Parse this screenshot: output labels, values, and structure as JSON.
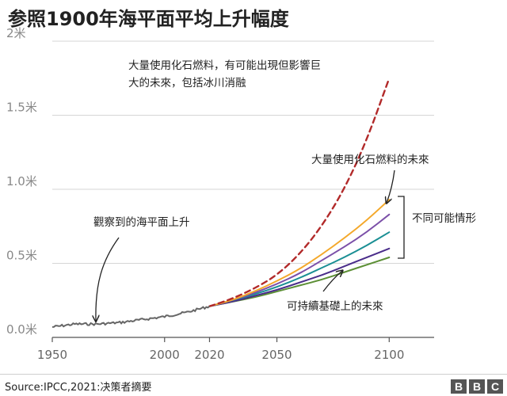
{
  "title": "参照1900年海平面平均上升幅度",
  "source": "Source:IPCC,2021:决策者摘要",
  "logo": [
    "B",
    "B",
    "C"
  ],
  "annotations": {
    "high_emission_long_1": "大量使用化石燃料，有可能出現但影響巨",
    "high_emission_long_2": "大的未來，包括冰川消融",
    "high_emission_short": "大量使用化石燃料的未來",
    "scenarios": "不同可能情形",
    "sustainable": "可持續基礎上的未來",
    "observed": "觀察到的海平面上升"
  },
  "chart_data": {
    "type": "line",
    "title": "参照1900年海平面平均上升幅度",
    "xlim": [
      1950,
      2120
    ],
    "ylim": [
      0,
      2
    ],
    "x_ticks": [
      1950,
      2000,
      2020,
      2050,
      2100
    ],
    "y_ticks": [
      {
        "value": 0,
        "label": "0.0米"
      },
      {
        "value": 0.5,
        "label": "0.5米"
      },
      {
        "value": 1.0,
        "label": "1.0米"
      },
      {
        "value": 1.5,
        "label": "1.5米"
      },
      {
        "value": 2.0,
        "label": "2米"
      }
    ],
    "grid": "horizontal",
    "colors": {
      "observed": "#666666",
      "high_extreme": "#b22a2a",
      "scenario_1": "#f4a82a",
      "scenario_2": "#7b4fa8",
      "scenario_3": "#1a8f94",
      "scenario_4": "#4a2d8a",
      "scenario_5": "#5c8f35"
    },
    "observed": {
      "x": [
        1950,
        1960,
        1970,
        1980,
        1990,
        2000,
        2010,
        2020
      ],
      "values": [
        0.07,
        0.09,
        0.09,
        0.1,
        0.12,
        0.14,
        0.17,
        0.21
      ]
    },
    "projections": [
      {
        "key": "high_extreme",
        "style": "dashed",
        "x": [
          2020,
          2030,
          2040,
          2050,
          2060,
          2070,
          2080,
          2090,
          2100
        ],
        "values": [
          0.21,
          0.26,
          0.33,
          0.42,
          0.56,
          0.75,
          1.0,
          1.33,
          1.75
        ]
      },
      {
        "key": "scenario_1",
        "style": "solid",
        "x": [
          2020,
          2030,
          2040,
          2050,
          2060,
          2070,
          2080,
          2090,
          2100
        ],
        "values": [
          0.21,
          0.25,
          0.31,
          0.38,
          0.46,
          0.56,
          0.67,
          0.79,
          0.93
        ]
      },
      {
        "key": "scenario_2",
        "style": "solid",
        "x": [
          2020,
          2030,
          2040,
          2050,
          2060,
          2070,
          2080,
          2090,
          2100
        ],
        "values": [
          0.21,
          0.25,
          0.3,
          0.36,
          0.43,
          0.52,
          0.61,
          0.71,
          0.83
        ]
      },
      {
        "key": "scenario_3",
        "style": "solid",
        "x": [
          2020,
          2030,
          2040,
          2050,
          2060,
          2070,
          2080,
          2090,
          2100
        ],
        "values": [
          0.21,
          0.25,
          0.29,
          0.34,
          0.4,
          0.47,
          0.54,
          0.62,
          0.71
        ]
      },
      {
        "key": "scenario_4",
        "style": "solid",
        "x": [
          2020,
          2030,
          2040,
          2050,
          2060,
          2070,
          2080,
          2090,
          2100
        ],
        "values": [
          0.21,
          0.24,
          0.28,
          0.32,
          0.37,
          0.42,
          0.48,
          0.54,
          0.6
        ]
      },
      {
        "key": "scenario_5",
        "style": "solid",
        "x": [
          2020,
          2030,
          2040,
          2050,
          2060,
          2070,
          2080,
          2090,
          2100
        ],
        "values": [
          0.21,
          0.24,
          0.27,
          0.31,
          0.35,
          0.39,
          0.44,
          0.49,
          0.54
        ]
      }
    ]
  }
}
